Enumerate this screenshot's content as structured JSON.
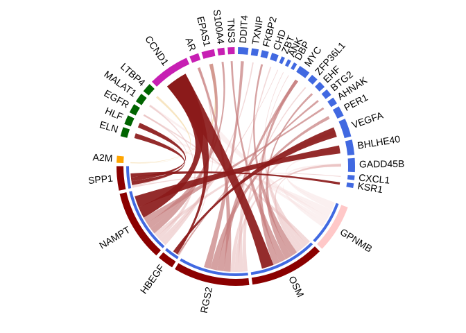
{
  "chart_data": {
    "type": "chord",
    "title": "",
    "colors": {
      "strong_link": "#8b1a1a",
      "medium_link": "#c47a7a",
      "weak_link": "#e8b9b9",
      "faint_link": "#f6dede",
      "a2m_link": "#f5deb3"
    },
    "sectors": [
      {
        "name": "GPNMB",
        "group": "ligand",
        "color": "#ffc8c8",
        "value": 4.2
      },
      {
        "name": "OSM",
        "group": "ligand",
        "color": "#8b0000",
        "value": 6.5
      },
      {
        "name": "RGS2",
        "group": "ligand",
        "color": "#8b0000",
        "value": 6.6
      },
      {
        "name": "HBEGF",
        "group": "ligand",
        "color": "#8b0000",
        "value": 1.4
      },
      {
        "name": "NAMPT",
        "group": "ligand",
        "color": "#8b0000",
        "value": 6.2
      },
      {
        "name": "SPP1",
        "group": "ligand",
        "color": "#8b0000",
        "value": 2.1
      },
      {
        "name": "A2M",
        "group": "ligand",
        "color": "#ffa500",
        "value": 0.6
      },
      {
        "name": "ELN",
        "group": "target",
        "color": "#006400",
        "value": 0.8
      },
      {
        "name": "HLF",
        "group": "target",
        "color": "#006400",
        "value": 0.8
      },
      {
        "name": "EGFR",
        "group": "target",
        "color": "#006400",
        "value": 0.8
      },
      {
        "name": "MALAT1",
        "group": "target",
        "color": "#006400",
        "value": 0.8
      },
      {
        "name": "LTBP4",
        "group": "target",
        "color": "#006400",
        "value": 0.8
      },
      {
        "name": "CCND1",
        "group": "target",
        "color": "#c71fb3",
        "value": 3.6
      },
      {
        "name": "AR",
        "group": "target",
        "color": "#c71fb3",
        "value": 0.8
      },
      {
        "name": "EPAS1",
        "group": "target",
        "color": "#c71fb3",
        "value": 1.1
      },
      {
        "name": "S100A4",
        "group": "target",
        "color": "#c71fb3",
        "value": 0.6
      },
      {
        "name": "TNS3",
        "group": "target",
        "color": "#c71fb3",
        "value": 0.6
      },
      {
        "name": "DDIT4",
        "group": "target",
        "color": "#4169e1",
        "value": 0.9
      },
      {
        "name": "TXNIP",
        "group": "target",
        "color": "#4169e1",
        "value": 0.6
      },
      {
        "name": "FKBP2",
        "group": "target",
        "color": "#4169e1",
        "value": 0.6
      },
      {
        "name": "CHD",
        "group": "target",
        "color": "#4169e1",
        "value": 0.6
      },
      {
        "name": "ZBT",
        "group": "target",
        "color": "#4169e1",
        "value": 0.3
      },
      {
        "name": "ANK",
        "group": "target",
        "color": "#4169e1",
        "value": 0.3
      },
      {
        "name": "DBP",
        "group": "target",
        "color": "#4169e1",
        "value": 0.3
      },
      {
        "name": "MYC",
        "group": "target",
        "color": "#4169e1",
        "value": 1.0
      },
      {
        "name": "ZFP36L1",
        "group": "target",
        "color": "#4169e1",
        "value": 0.6
      },
      {
        "name": "EHF",
        "group": "target",
        "color": "#4169e1",
        "value": 0.6
      },
      {
        "name": "BTG2",
        "group": "target",
        "color": "#4169e1",
        "value": 0.6
      },
      {
        "name": "AHNAK",
        "group": "target",
        "color": "#4169e1",
        "value": 0.6
      },
      {
        "name": "PER1",
        "group": "target",
        "color": "#4169e1",
        "value": 0.9
      },
      {
        "name": "VEGFA",
        "group": "target",
        "color": "#4169e1",
        "value": 1.6
      },
      {
        "name": "BHLHE40",
        "group": "target",
        "color": "#4169e1",
        "value": 1.3
      },
      {
        "name": "GADD45B",
        "group": "target",
        "color": "#4169e1",
        "value": 1.2
      },
      {
        "name": "CXCL1",
        "group": "target",
        "color": "#4169e1",
        "value": 0.4
      },
      {
        "name": "KSR1",
        "group": "target",
        "color": "#4169e1",
        "value": 0.4
      }
    ],
    "links": [
      {
        "from": "NAMPT",
        "to": "CCND1",
        "strength": "strong"
      },
      {
        "from": "HBEGF",
        "to": "CCND1",
        "strength": "strong"
      },
      {
        "from": "OSM",
        "to": "CCND1",
        "strength": "strong"
      },
      {
        "from": "SPP1",
        "to": "ELN",
        "strength": "strong"
      },
      {
        "from": "SPP1",
        "to": "HLF",
        "strength": "strong"
      },
      {
        "from": "SPP1",
        "to": "KSR1",
        "strength": "strong"
      },
      {
        "from": "HBEGF",
        "to": "VEGFA",
        "strength": "strong"
      },
      {
        "from": "NAMPT",
        "to": "BHLHE40",
        "strength": "strong"
      },
      {
        "from": "A2M",
        "to": "LTBP4",
        "strength": "a2m"
      },
      {
        "from": "A2M",
        "to": "EPAS1",
        "strength": "a2m"
      },
      {
        "from": "RGS2",
        "to": "AR",
        "strength": "medium"
      },
      {
        "from": "RGS2",
        "to": "MYC",
        "strength": "medium"
      },
      {
        "from": "RGS2",
        "to": "PER1",
        "strength": "medium"
      },
      {
        "from": "RGS2",
        "to": "DDIT4",
        "strength": "medium"
      },
      {
        "from": "NAMPT",
        "to": "EPAS1",
        "strength": "medium"
      },
      {
        "from": "NAMPT",
        "to": "S100A4",
        "strength": "medium"
      },
      {
        "from": "NAMPT",
        "to": "AHNAK",
        "strength": "medium"
      },
      {
        "from": "OSM",
        "to": "FKBP2",
        "strength": "medium"
      },
      {
        "from": "OSM",
        "to": "EHF",
        "strength": "medium"
      },
      {
        "from": "OSM",
        "to": "TNS3",
        "strength": "medium"
      },
      {
        "from": "OSM",
        "to": "MYC",
        "strength": "medium"
      },
      {
        "from": "HBEGF",
        "to": "BTG2",
        "strength": "medium"
      },
      {
        "from": "RGS2",
        "to": "ZFP36L1",
        "strength": "weak"
      },
      {
        "from": "RGS2",
        "to": "CHD",
        "strength": "weak"
      },
      {
        "from": "RGS2",
        "to": "GADD45B",
        "strength": "weak"
      },
      {
        "from": "NAMPT",
        "to": "TXNIP",
        "strength": "weak"
      },
      {
        "from": "NAMPT",
        "to": "ZBT",
        "strength": "weak"
      },
      {
        "from": "NAMPT",
        "to": "MALAT1",
        "strength": "weak"
      },
      {
        "from": "OSM",
        "to": "EGFR",
        "strength": "weak"
      },
      {
        "from": "OSM",
        "to": "ANK",
        "strength": "weak"
      },
      {
        "from": "OSM",
        "to": "DBP",
        "strength": "weak"
      },
      {
        "from": "SPP1",
        "to": "CXCL1",
        "strength": "weak"
      },
      {
        "from": "SPP1",
        "to": "EGFR",
        "strength": "weak"
      },
      {
        "from": "HBEGF",
        "to": "AR",
        "strength": "weak"
      },
      {
        "from": "RGS2",
        "to": "VEGFA",
        "strength": "weak"
      },
      {
        "from": "OSM",
        "to": "GADD45B",
        "strength": "weak"
      },
      {
        "from": "NAMPT",
        "to": "VEGFA",
        "strength": "weak"
      },
      {
        "from": "GPNMB",
        "to": "GADD45B",
        "strength": "faint"
      },
      {
        "from": "GPNMB",
        "to": "BHLHE40",
        "strength": "faint"
      },
      {
        "from": "GPNMB",
        "to": "ELN",
        "strength": "faint"
      },
      {
        "from": "GPNMB",
        "to": "HLF",
        "strength": "faint"
      },
      {
        "from": "GPNMB",
        "to": "CCND1",
        "strength": "faint"
      },
      {
        "from": "GPNMB",
        "to": "MALAT1",
        "strength": "faint"
      },
      {
        "from": "GPNMB",
        "to": "KSR1",
        "strength": "faint"
      }
    ]
  }
}
